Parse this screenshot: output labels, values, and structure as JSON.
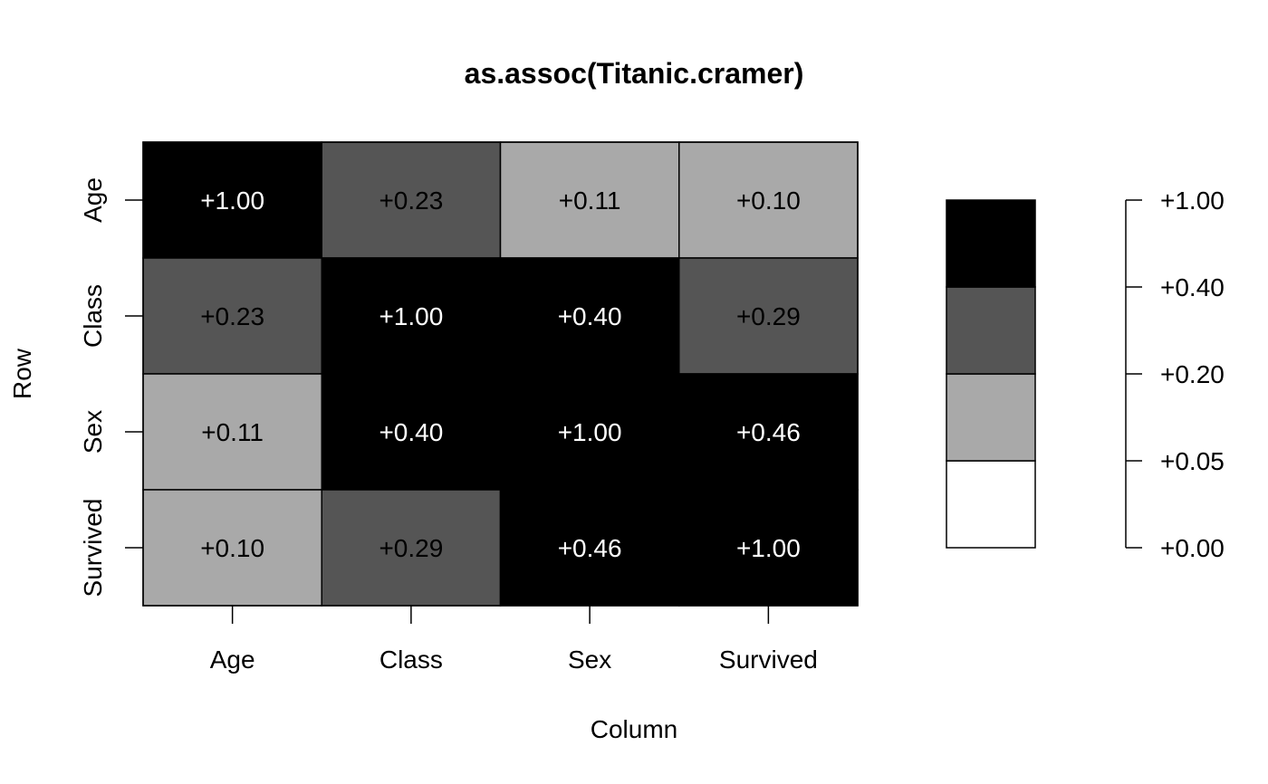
{
  "chart_data": {
    "type": "heatmap",
    "title": "as.assoc(Titanic.cramer)",
    "xlabel": "Column",
    "ylabel": "Row",
    "columns": [
      "Age",
      "Class",
      "Sex",
      "Survived"
    ],
    "rows": [
      "Age",
      "Class",
      "Sex",
      "Survived"
    ],
    "values": [
      [
        1.0,
        0.23,
        0.11,
        0.1
      ],
      [
        0.23,
        1.0,
        0.4,
        0.29
      ],
      [
        0.11,
        0.4,
        1.0,
        0.46
      ],
      [
        0.1,
        0.29,
        0.46,
        1.0
      ]
    ],
    "cell_labels": [
      [
        "+1.00",
        "+0.23",
        "+0.11",
        "+0.10"
      ],
      [
        "+0.23",
        "+1.00",
        "+0.40",
        "+0.29"
      ],
      [
        "+0.11",
        "+0.40",
        "+1.00",
        "+0.46"
      ],
      [
        "+0.10",
        "+0.29",
        "+0.46",
        "+1.00"
      ]
    ],
    "color_key": {
      "breaks": [
        0.0,
        0.05,
        0.2,
        0.4,
        1.0
      ],
      "break_labels": [
        "+0.00",
        "+0.05",
        "+0.20",
        "+0.40",
        "+1.00"
      ],
      "colors": [
        "#ffffff",
        "#a9a9a9",
        "#555555",
        "#000000"
      ]
    },
    "grid": false,
    "legend": "right"
  }
}
